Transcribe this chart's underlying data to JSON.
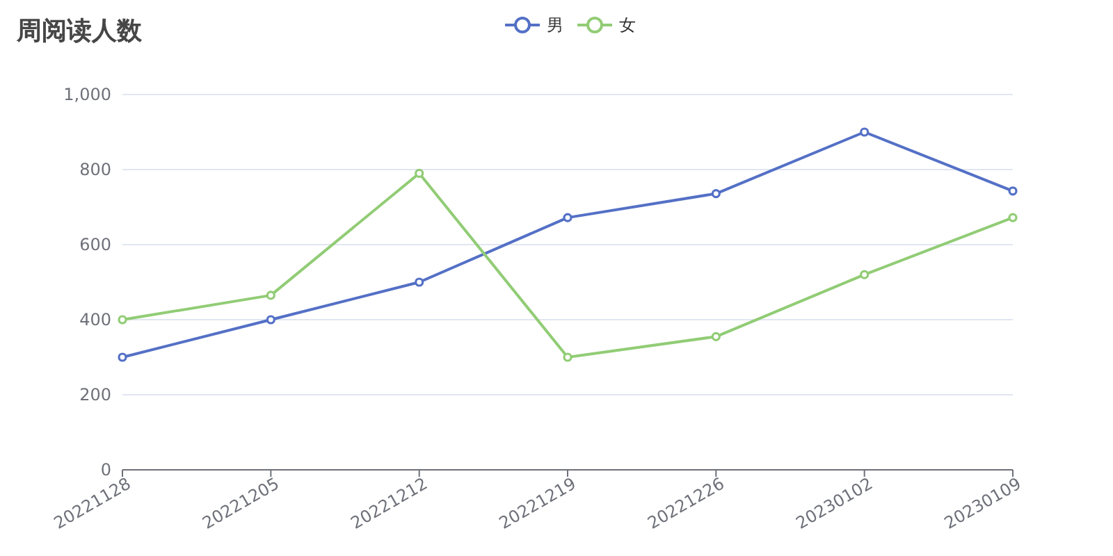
{
  "chart_data": {
    "type": "line",
    "title": "周阅读人数",
    "categories": [
      "20221128",
      "20221205",
      "20221212",
      "20221219",
      "20221226",
      "20230102",
      "20230109"
    ],
    "series": [
      {
        "name": "男",
        "color": "#5470c6",
        "values": [
          300,
          400,
          500,
          672,
          736,
          900,
          743
        ]
      },
      {
        "name": "女",
        "color": "#91cc75",
        "values": [
          400,
          465,
          790,
          300,
          355,
          520,
          672
        ]
      }
    ],
    "ylim": [
      0,
      1000
    ],
    "yticks": [
      0,
      200,
      400,
      600,
      800,
      {
        "value": 1000,
        "label": "1,000"
      }
    ],
    "grid": "y",
    "legend": "top",
    "marker": "circle",
    "line_style": "solid"
  }
}
